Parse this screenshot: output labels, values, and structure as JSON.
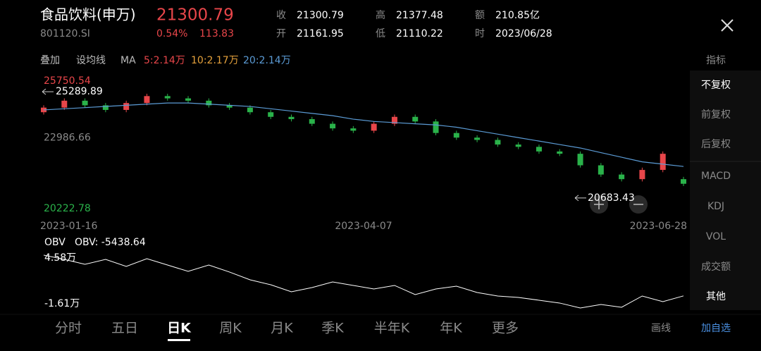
{
  "header": {
    "title": "食品饮料(申万)",
    "price": "21300.79",
    "code": "801120.SI",
    "change_pct": "0.54%",
    "change": "113.83",
    "stats": [
      {
        "label": "收",
        "value": "21300.79"
      },
      {
        "label": "开",
        "value": "21161.95"
      },
      {
        "label": "高",
        "value": "21377.48"
      },
      {
        "label": "低",
        "value": "21110.22"
      },
      {
        "label": "额",
        "value": "210.85亿"
      },
      {
        "label": "时",
        "value": "2023/06/28"
      }
    ]
  },
  "toolbar": {
    "overlay": "叠加",
    "set_ma": "设均线",
    "ma": "MA",
    "ma_values": [
      {
        "text": "5:2.14万",
        "color": "#e8464a"
      },
      {
        "text": "10:2.17万",
        "color": "#e6a23c"
      },
      {
        "text": "20:2.14万",
        "color": "#5b9bd5"
      }
    ]
  },
  "price_chart": {
    "type": "candlestick",
    "ylim": [
      20222.78,
      25750.54
    ],
    "yticks": [
      25750.54,
      22986.66,
      20222.78
    ],
    "up_color": "#e8464a",
    "down_color": "#2ab24a",
    "open": [
      24400,
      24600,
      24900,
      24700,
      24500,
      24800,
      25100,
      25000,
      24900,
      24700,
      24600,
      24400,
      24200,
      24100,
      23900,
      23700,
      23600,
      23900,
      24200,
      24000,
      23500,
      23300,
      23200,
      23000,
      22900,
      22700,
      22600,
      22100,
      21700,
      21500,
      21900,
      21500
    ],
    "close": [
      24600,
      24900,
      24700,
      24500,
      24800,
      25100,
      25000,
      24900,
      24700,
      24600,
      24400,
      24200,
      24100,
      23900,
      23700,
      23600,
      23900,
      24200,
      24000,
      23500,
      23300,
      23200,
      23000,
      22900,
      22700,
      22600,
      22100,
      21700,
      21500,
      21900,
      22600,
      21300
    ],
    "high": [
      24700,
      25000,
      25000,
      24800,
      24900,
      25200,
      25200,
      25100,
      25000,
      24800,
      24700,
      24500,
      24300,
      24200,
      24000,
      23800,
      24000,
      24300,
      24300,
      24100,
      23600,
      23400,
      23300,
      23100,
      23000,
      22800,
      22700,
      22200,
      21800,
      22000,
      22700,
      21600
    ],
    "low": [
      24300,
      24500,
      24600,
      24400,
      24400,
      24700,
      24900,
      24800,
      24600,
      24500,
      24300,
      24100,
      24000,
      23800,
      23600,
      23500,
      23500,
      23800,
      23900,
      23400,
      23200,
      23100,
      22900,
      22800,
      22600,
      22500,
      22000,
      21600,
      21400,
      21400,
      21800,
      21200
    ],
    "ma20": {
      "color": "#5b9bd5",
      "values": [
        24500,
        24550,
        24600,
        24650,
        24700,
        24750,
        24800,
        24800,
        24750,
        24700,
        24650,
        24550,
        24450,
        24350,
        24250,
        24100,
        24000,
        23950,
        23900,
        23850,
        23750,
        23600,
        23450,
        23300,
        23150,
        23000,
        22850,
        22650,
        22450,
        22250,
        22150,
        22050
      ]
    },
    "max_label": 25289.89,
    "min_label": 20683.43,
    "x_labels": [
      "2023-01-16",
      "2023-04-07",
      "2023-06-28"
    ]
  },
  "obv_chart": {
    "type": "line",
    "title": "OBV",
    "current": "OBV: -5438.64",
    "color": "#ffffff",
    "ylim": [
      -16100,
      45800
    ],
    "yticks": [
      {
        "value": 45800,
        "label": "4.58万"
      },
      {
        "value": -16100,
        "label": "-1.61万"
      }
    ],
    "values": [
      49600,
      43900,
      37200,
      43900,
      34400,
      44800,
      36300,
      27700,
      36300,
      26800,
      16300,
      9600,
      100,
      5800,
      13400,
      8700,
      3900,
      8700,
      -3700,
      3900,
      7700,
      -900,
      -5600,
      -7500,
      -11300,
      -15100,
      -21800,
      -17000,
      -20800,
      -5600,
      -13200,
      -5438.64
    ]
  },
  "side_menu": {
    "header": "指标",
    "items": [
      "不复权",
      "前复权",
      "后复权",
      "MACD",
      "KDJ",
      "VOL",
      "成交额",
      "其他"
    ]
  },
  "tabs": {
    "items": [
      "分时",
      "五日",
      "日K",
      "周K",
      "月K",
      "季K",
      "半年K",
      "年K",
      "更多"
    ],
    "active": 2
  },
  "actions": [
    "画线",
    "加自选"
  ]
}
